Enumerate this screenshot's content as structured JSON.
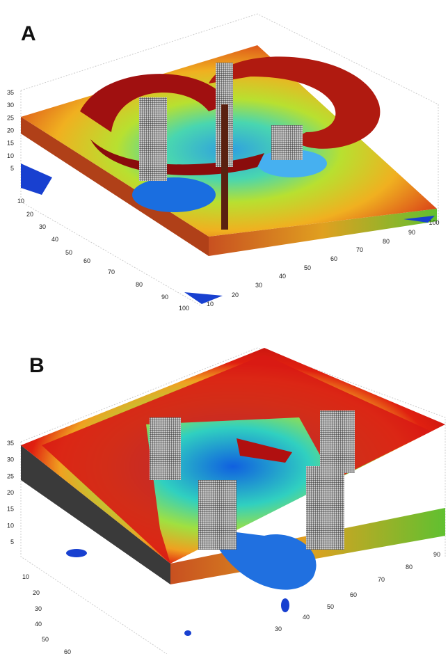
{
  "panels": [
    {
      "label": "A",
      "z_labels": [
        35,
        30,
        25,
        20,
        15,
        10,
        5
      ],
      "left_labels": [
        10,
        20,
        30,
        40,
        50,
        60,
        70,
        80,
        90,
        100
      ],
      "right_labels": [
        10,
        20,
        30,
        40,
        50,
        60,
        70,
        80,
        90,
        100
      ]
    },
    {
      "label": "B",
      "z_labels": [
        35,
        30,
        25,
        20,
        15,
        10,
        5
      ],
      "left_labels": [
        10,
        20,
        30,
        40,
        50,
        60
      ],
      "right_labels": [
        30,
        40,
        50,
        60,
        70,
        80,
        90
      ]
    }
  ]
}
